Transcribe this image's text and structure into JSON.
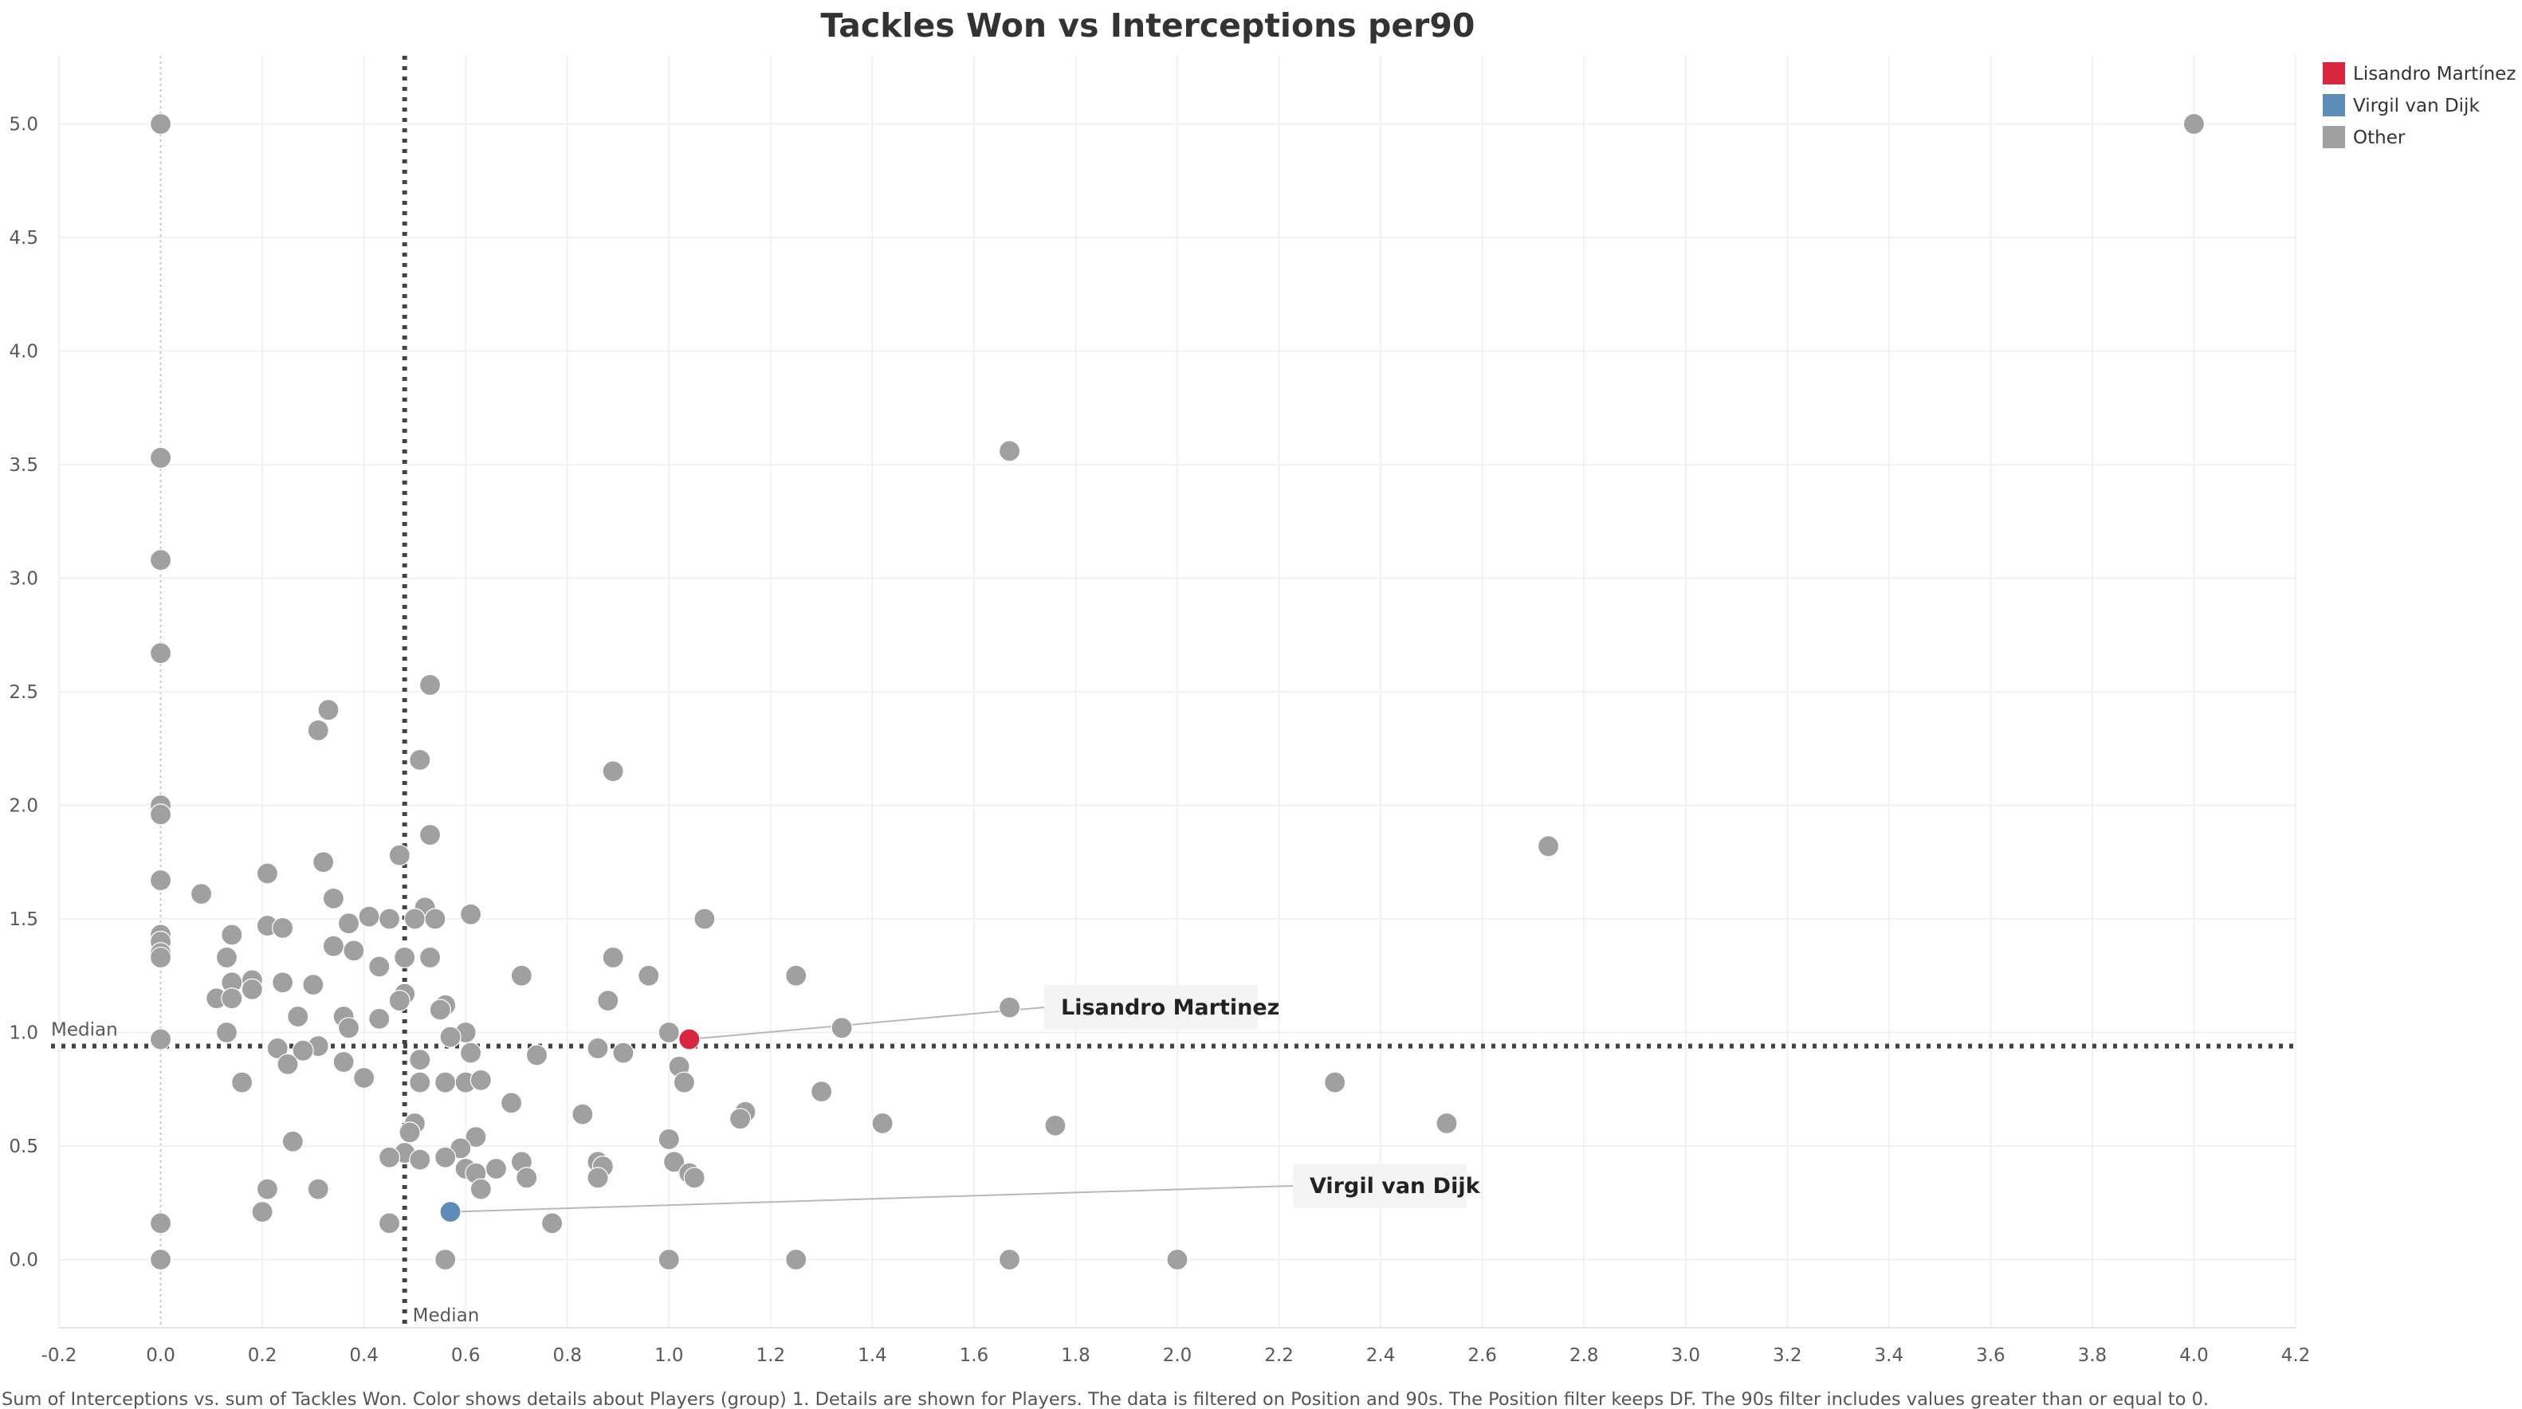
{
  "chart_data": {
    "type": "scatter",
    "title": "Tackles Won vs Interceptions per90",
    "xlabel": "",
    "ylabel": "",
    "xlim": [
      -0.2,
      4.2
    ],
    "ylim": [
      -0.3,
      5.3
    ],
    "x_ticks": [
      "-0.2",
      "0.0",
      "0.2",
      "0.4",
      "0.6",
      "0.8",
      "1.0",
      "1.2",
      "1.4",
      "1.6",
      "1.8",
      "2.0",
      "2.2",
      "2.4",
      "2.6",
      "2.8",
      "3.0",
      "3.2",
      "3.4",
      "3.6",
      "3.8",
      "4.0",
      "4.2"
    ],
    "y_ticks": [
      "0.0",
      "0.5",
      "1.0",
      "1.5",
      "2.0",
      "2.5",
      "3.0",
      "3.5",
      "4.0",
      "4.5",
      "5.0"
    ],
    "grid": true,
    "legend_position": "top-right",
    "reference_lines": [
      {
        "axis": "x",
        "value": 0.48,
        "label": "Median"
      },
      {
        "axis": "y",
        "value": 0.94,
        "label": "Median"
      }
    ],
    "series": [
      {
        "name": "Lisandro Martínez",
        "color": "#D7263D",
        "points": [
          [
            1.04,
            0.97
          ]
        ]
      },
      {
        "name": "Virgil van Dijk",
        "color": "#5B8DB8",
        "points": [
          [
            0.57,
            0.21
          ]
        ]
      },
      {
        "name": "Other",
        "color": "#A0A0A0",
        "points": [
          [
            0.0,
            5.0
          ],
          [
            4.0,
            5.0
          ],
          [
            1.67,
            3.56
          ],
          [
            0.0,
            3.53
          ],
          [
            0.0,
            3.08
          ],
          [
            0.0,
            2.67
          ],
          [
            0.53,
            2.53
          ],
          [
            0.33,
            2.42
          ],
          [
            0.31,
            2.33
          ],
          [
            0.51,
            2.2
          ],
          [
            0.89,
            2.15
          ],
          [
            0.0,
            2.0
          ],
          [
            0.0,
            1.96
          ],
          [
            0.53,
            1.87
          ],
          [
            2.73,
            1.82
          ],
          [
            0.47,
            1.78
          ],
          [
            0.32,
            1.75
          ],
          [
            0.21,
            1.7
          ],
          [
            0.0,
            1.67
          ],
          [
            0.08,
            1.61
          ],
          [
            0.34,
            1.59
          ],
          [
            0.52,
            1.55
          ],
          [
            0.61,
            1.52
          ],
          [
            0.41,
            1.51
          ],
          [
            0.45,
            1.5
          ],
          [
            0.5,
            1.5
          ],
          [
            0.54,
            1.5
          ],
          [
            1.07,
            1.5
          ],
          [
            0.21,
            1.47
          ],
          [
            0.37,
            1.48
          ],
          [
            0.24,
            1.46
          ],
          [
            0.0,
            1.43
          ],
          [
            0.14,
            1.43
          ],
          [
            0.0,
            1.4
          ],
          [
            0.34,
            1.38
          ],
          [
            0.38,
            1.36
          ],
          [
            0.0,
            1.35
          ],
          [
            0.0,
            1.33
          ],
          [
            0.13,
            1.33
          ],
          [
            0.48,
            1.33
          ],
          [
            0.53,
            1.33
          ],
          [
            0.89,
            1.33
          ],
          [
            0.43,
            1.29
          ],
          [
            0.71,
            1.25
          ],
          [
            0.96,
            1.25
          ],
          [
            1.25,
            1.25
          ],
          [
            0.18,
            1.23
          ],
          [
            0.14,
            1.22
          ],
          [
            0.24,
            1.22
          ],
          [
            0.3,
            1.21
          ],
          [
            0.18,
            1.19
          ],
          [
            0.48,
            1.17
          ],
          [
            0.11,
            1.15
          ],
          [
            0.14,
            1.15
          ],
          [
            0.47,
            1.14
          ],
          [
            0.88,
            1.14
          ],
          [
            0.56,
            1.12
          ],
          [
            0.55,
            1.1
          ],
          [
            1.67,
            1.11
          ],
          [
            0.27,
            1.07
          ],
          [
            0.36,
            1.07
          ],
          [
            0.43,
            1.06
          ],
          [
            0.37,
            1.02
          ],
          [
            1.34,
            1.02
          ],
          [
            0.13,
            1.0
          ],
          [
            0.6,
            1.0
          ],
          [
            1.0,
            1.0
          ],
          [
            0.57,
            0.98
          ],
          [
            0.0,
            0.97
          ],
          [
            0.23,
            0.93
          ],
          [
            0.31,
            0.94
          ],
          [
            0.28,
            0.92
          ],
          [
            0.86,
            0.93
          ],
          [
            0.61,
            0.91
          ],
          [
            0.91,
            0.91
          ],
          [
            0.74,
            0.9
          ],
          [
            0.51,
            0.88
          ],
          [
            0.36,
            0.87
          ],
          [
            0.25,
            0.86
          ],
          [
            1.02,
            0.85
          ],
          [
            0.4,
            0.8
          ],
          [
            0.16,
            0.78
          ],
          [
            0.51,
            0.78
          ],
          [
            0.56,
            0.78
          ],
          [
            0.6,
            0.78
          ],
          [
            0.63,
            0.79
          ],
          [
            1.03,
            0.78
          ],
          [
            2.31,
            0.78
          ],
          [
            1.3,
            0.74
          ],
          [
            0.69,
            0.69
          ],
          [
            1.15,
            0.65
          ],
          [
            0.83,
            0.64
          ],
          [
            1.14,
            0.62
          ],
          [
            0.5,
            0.6
          ],
          [
            1.42,
            0.6
          ],
          [
            1.76,
            0.59
          ],
          [
            2.53,
            0.6
          ],
          [
            0.49,
            0.56
          ],
          [
            0.62,
            0.54
          ],
          [
            1.0,
            0.53
          ],
          [
            0.26,
            0.52
          ],
          [
            0.59,
            0.49
          ],
          [
            0.48,
            0.47
          ],
          [
            0.45,
            0.45
          ],
          [
            0.56,
            0.45
          ],
          [
            0.51,
            0.44
          ],
          [
            0.71,
            0.43
          ],
          [
            0.86,
            0.43
          ],
          [
            1.01,
            0.43
          ],
          [
            0.87,
            0.41
          ],
          [
            0.6,
            0.4
          ],
          [
            0.66,
            0.4
          ],
          [
            1.04,
            0.38
          ],
          [
            0.62,
            0.38
          ],
          [
            0.72,
            0.36
          ],
          [
            0.86,
            0.36
          ],
          [
            1.05,
            0.36
          ],
          [
            0.21,
            0.31
          ],
          [
            0.31,
            0.31
          ],
          [
            0.63,
            0.31
          ],
          [
            0.2,
            0.21
          ],
          [
            0.0,
            0.16
          ],
          [
            0.45,
            0.16
          ],
          [
            0.77,
            0.16
          ],
          [
            0.0,
            0.0
          ],
          [
            0.56,
            0.0
          ],
          [
            1.0,
            0.0
          ],
          [
            1.25,
            0.0
          ],
          [
            1.67,
            0.0
          ],
          [
            2.0,
            0.0
          ]
        ]
      }
    ],
    "annotations": [
      {
        "text": "Lisandro Martinez",
        "anchor": [
          1.04,
          0.97
        ]
      },
      {
        "text": "Virgil van Dijk",
        "anchor": [
          0.57,
          0.21
        ]
      }
    ]
  },
  "legend": [
    {
      "label": "Lisandro Martínez",
      "color": "#D7263D"
    },
    {
      "label": "Virgil van Dijk",
      "color": "#5B8DB8"
    },
    {
      "label": "Other",
      "color": "#A0A0A0"
    }
  ],
  "caption": "Sum of Interceptions vs. sum of Tackles Won.  Color shows details about Players (group) 1.  Details are shown for Players. The data is filtered on Position and 90s. The Position filter keeps DF. The 90s filter includes values greater than or equal to 0."
}
